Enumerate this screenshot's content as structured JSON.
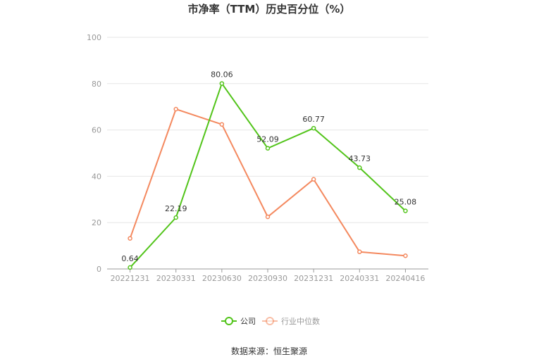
{
  "chart_data": {
    "type": "line",
    "title": "市净率（TTM）历史百分位（%）",
    "categories": [
      "20221231",
      "20230331",
      "20230630",
      "20230930",
      "20231231",
      "20240331",
      "20240416"
    ],
    "ylim": [
      0,
      100
    ],
    "yticks": [
      0,
      20,
      40,
      60,
      80,
      100
    ],
    "grid": true,
    "legend_position": "bottom",
    "series": [
      {
        "name": "公司",
        "color": "#52c41a",
        "values": [
          0.64,
          22.19,
          80.06,
          52.09,
          60.77,
          43.73,
          25.08
        ],
        "labels": [
          "0.64",
          "22.19",
          "80.06",
          "52.09",
          "60.77",
          "43.73",
          "25.08"
        ]
      },
      {
        "name": "行业中位数",
        "color": "#f4895f",
        "values": [
          13.2,
          69.0,
          62.4,
          22.5,
          38.7,
          7.4,
          5.7
        ]
      }
    ],
    "source": "数据来源：恒生聚源"
  }
}
